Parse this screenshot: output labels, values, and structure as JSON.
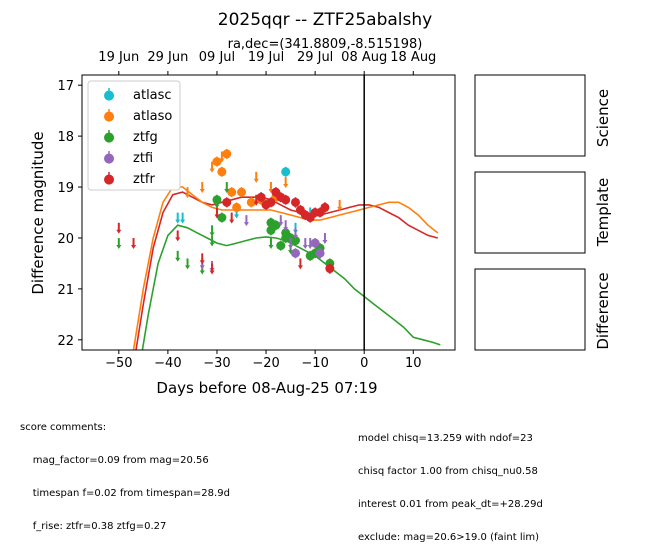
{
  "chart_data": {
    "type": "scatter",
    "title": "2025qqr -- ZTF25abalshy",
    "subtitle": "ra,dec=(341.8809,-8.515198)",
    "xlabel": "Days before 08-Aug-25 07:19",
    "ylabel": "Difference magnitude",
    "xlim": [
      -57.5,
      18.5
    ],
    "ylim": [
      22.2,
      16.8
    ],
    "y_inverted": true,
    "grid": false,
    "legend_position": "top-left",
    "x_ticks": [
      -50,
      -40,
      -30,
      -20,
      -10,
      0,
      10
    ],
    "y_ticks": [
      17,
      18,
      19,
      20,
      21,
      22
    ],
    "top_axis_ticks": [
      {
        "day": -50,
        "label": "19 Jun"
      },
      {
        "day": -40,
        "label": "29 Jun"
      },
      {
        "day": -30,
        "label": "09 Jul"
      },
      {
        "day": -20,
        "label": "19 Jul"
      },
      {
        "day": -10,
        "label": "29 Jul"
      },
      {
        "day": 0,
        "label": "08 Aug"
      },
      {
        "day": 10,
        "label": "18 Aug"
      }
    ],
    "reference_line_x": 0,
    "series": [
      {
        "name": "atlasc",
        "color": "#17becf",
        "detections": [
          {
            "x": -16,
            "y": 18.7
          }
        ],
        "upper_limits": [
          {
            "x": -38,
            "y": 19.6
          },
          {
            "x": -37,
            "y": 19.6
          },
          {
            "x": -26,
            "y": 19.5
          },
          {
            "x": -21,
            "y": 19.2
          },
          {
            "x": -14,
            "y": 19.8
          },
          {
            "x": -11,
            "y": 19.5
          },
          {
            "x": -7,
            "y": 20.6
          }
        ]
      },
      {
        "name": "atlaso",
        "color": "#ff7f0e",
        "detections": [
          {
            "x": -30,
            "y": 18.5
          },
          {
            "x": -29,
            "y": 18.7
          },
          {
            "x": -28,
            "y": 18.35
          },
          {
            "x": -27,
            "y": 19.1
          },
          {
            "x": -26,
            "y": 19.4
          },
          {
            "x": -25,
            "y": 19.1
          },
          {
            "x": -23,
            "y": 19.3
          },
          {
            "x": -21,
            "y": 19.25
          },
          {
            "x": -18,
            "y": 19.2
          }
        ],
        "upper_limits": [
          {
            "x": -36,
            "y": 19.1
          },
          {
            "x": -33,
            "y": 19.0
          },
          {
            "x": -31,
            "y": 18.6
          },
          {
            "x": -29,
            "y": 18.4
          },
          {
            "x": -22,
            "y": 18.8
          },
          {
            "x": -19,
            "y": 19.0
          },
          {
            "x": -16,
            "y": 18.9
          },
          {
            "x": -14,
            "y": 19.3
          },
          {
            "x": -8,
            "y": 19.4
          },
          {
            "x": -5,
            "y": 19.35
          }
        ]
      },
      {
        "name": "ztfg",
        "color": "#2ca02c",
        "detections": [
          {
            "x": -30,
            "y": 19.25
          },
          {
            "x": -29,
            "y": 19.6
          },
          {
            "x": -19,
            "y": 19.7
          },
          {
            "x": -19,
            "y": 19.85
          },
          {
            "x": -18,
            "y": 19.75
          },
          {
            "x": -17,
            "y": 20.15
          },
          {
            "x": -16,
            "y": 20.0
          },
          {
            "x": -16,
            "y": 19.9
          },
          {
            "x": -15,
            "y": 20.0
          },
          {
            "x": -14,
            "y": 20.05
          },
          {
            "x": -11,
            "y": 20.35
          },
          {
            "x": -10,
            "y": 20.3
          },
          {
            "x": -9,
            "y": 20.2
          },
          {
            "x": -7,
            "y": 20.5
          }
        ],
        "upper_limits": [
          {
            "x": -50,
            "y": 20.1
          },
          {
            "x": -38,
            "y": 20.35
          },
          {
            "x": -36,
            "y": 20.5
          },
          {
            "x": -33,
            "y": 20.6
          },
          {
            "x": -31,
            "y": 20.05
          },
          {
            "x": -31,
            "y": 19.85
          },
          {
            "x": -30,
            "y": 19.3
          },
          {
            "x": -28,
            "y": 19.0
          },
          {
            "x": -19,
            "y": 20.1
          },
          {
            "x": -15,
            "y": 20.2
          }
        ]
      },
      {
        "name": "ztfi",
        "color": "#9467bd",
        "detections": [
          {
            "x": -14,
            "y": 20.3
          },
          {
            "x": -10,
            "y": 20.1
          },
          {
            "x": -9,
            "y": 20.3
          }
        ],
        "upper_limits": [
          {
            "x": -33,
            "y": 20.5
          },
          {
            "x": -31,
            "y": 20.55
          },
          {
            "x": -24,
            "y": 19.65
          },
          {
            "x": -17,
            "y": 19.65
          },
          {
            "x": -16,
            "y": 19.75
          },
          {
            "x": -15,
            "y": 20.1
          },
          {
            "x": -14,
            "y": 19.9
          },
          {
            "x": -12,
            "y": 20.1
          },
          {
            "x": -11,
            "y": 20.1
          },
          {
            "x": -9,
            "y": 20.3
          },
          {
            "x": -8,
            "y": 20.0
          }
        ]
      },
      {
        "name": "ztfr",
        "color": "#d62728",
        "detections": [
          {
            "x": -28,
            "y": 19.3
          },
          {
            "x": -21,
            "y": 19.2
          },
          {
            "x": -20,
            "y": 19.35
          },
          {
            "x": -19,
            "y": 19.3
          },
          {
            "x": -18,
            "y": 19.1
          },
          {
            "x": -17,
            "y": 19.2
          },
          {
            "x": -16,
            "y": 19.25
          },
          {
            "x": -14,
            "y": 19.3
          },
          {
            "x": -13,
            "y": 19.45
          },
          {
            "x": -12,
            "y": 19.55
          },
          {
            "x": -11,
            "y": 19.6
          },
          {
            "x": -10,
            "y": 19.5
          },
          {
            "x": -9,
            "y": 19.5
          },
          {
            "x": -8,
            "y": 19.4
          },
          {
            "x": -7,
            "y": 20.6
          }
        ],
        "upper_limits": [
          {
            "x": -50,
            "y": 19.8
          },
          {
            "x": -47,
            "y": 20.1
          },
          {
            "x": -38,
            "y": 19.95
          },
          {
            "x": -33,
            "y": 20.4
          },
          {
            "x": -31,
            "y": 20.6
          },
          {
            "x": -30,
            "y": 19.5
          },
          {
            "x": -27,
            "y": 19.6
          },
          {
            "x": -22,
            "y": 19.25
          },
          {
            "x": -13,
            "y": 20.5
          }
        ]
      }
    ],
    "model_curves": [
      {
        "band": "ztfg",
        "color": "#2ca02c",
        "x": [
          -45.2,
          -44,
          -42,
          -40,
          -38,
          -36,
          -34,
          -32,
          -30,
          -28,
          -26,
          -24,
          -22,
          -20,
          -18,
          -16,
          -14,
          -12,
          -10,
          -8,
          -6,
          -4,
          -2,
          0,
          2,
          4,
          6,
          8,
          10,
          12,
          14,
          15.5
        ],
        "y": [
          22.2,
          21.5,
          20.5,
          19.95,
          19.75,
          19.8,
          19.9,
          20.0,
          20.1,
          20.15,
          20.1,
          20.05,
          20.0,
          19.98,
          20.0,
          20.05,
          20.15,
          20.25,
          20.35,
          20.5,
          20.65,
          20.8,
          21.0,
          21.15,
          21.3,
          21.45,
          21.6,
          21.75,
          21.95,
          22.0,
          22.05,
          22.1
        ]
      },
      {
        "band": "ztfr",
        "color": "#d62728",
        "x": [
          -46.5,
          -45,
          -43,
          -41,
          -39,
          -37,
          -35,
          -33,
          -31,
          -29,
          -27,
          -25,
          -23,
          -21,
          -19,
          -17,
          -15,
          -13,
          -11,
          -9,
          -7,
          -5,
          -3,
          -1,
          1,
          3,
          5,
          7,
          9,
          11,
          13,
          15
        ],
        "y": [
          22.2,
          21.3,
          20.2,
          19.5,
          19.15,
          19.1,
          19.2,
          19.3,
          19.35,
          19.3,
          19.25,
          19.2,
          19.2,
          19.2,
          19.25,
          19.35,
          19.45,
          19.5,
          19.55,
          19.55,
          19.5,
          19.45,
          19.4,
          19.35,
          19.35,
          19.4,
          19.5,
          19.6,
          19.75,
          19.85,
          19.95,
          20.0
        ]
      },
      {
        "band": "atlaso",
        "color": "#ff7f0e",
        "x": [
          -47,
          -45,
          -43,
          -41,
          -39,
          -37,
          -35,
          -33,
          -31,
          -29,
          -27,
          -25,
          -23,
          -21,
          -19,
          -17,
          -15,
          -13,
          -11,
          -9,
          -7,
          -5,
          -3,
          -1,
          1,
          3,
          5,
          7,
          9,
          11,
          13,
          15
        ],
        "y": [
          22.2,
          21.0,
          20.0,
          19.3,
          19.0,
          19.0,
          19.15,
          19.3,
          19.4,
          19.45,
          19.45,
          19.45,
          19.45,
          19.45,
          19.45,
          19.5,
          19.55,
          19.6,
          19.65,
          19.65,
          19.6,
          19.55,
          19.5,
          19.45,
          19.4,
          19.35,
          19.3,
          19.3,
          19.4,
          19.55,
          19.75,
          19.9
        ]
      }
    ]
  },
  "legend_marker": "●",
  "side_panels": [
    {
      "label": "Science"
    },
    {
      "label": "Template"
    },
    {
      "label": "Difference"
    }
  ],
  "footer": {
    "left": [
      "score comments:",
      "    mag_factor=0.09 from mag=20.56",
      "    timespan f=0.02 from timespan=28.9d",
      "    f_rise: ztfr=0.38 ztfg=0.27"
    ],
    "right": [
      "model chisq=13.259 with ndof=23",
      "chisq factor 1.00 from chisq_nu0.58",
      "interest 0.01 from peak_dt=+28.29d",
      "exclude: mag=20.6>19.0 (faint lim)"
    ]
  }
}
